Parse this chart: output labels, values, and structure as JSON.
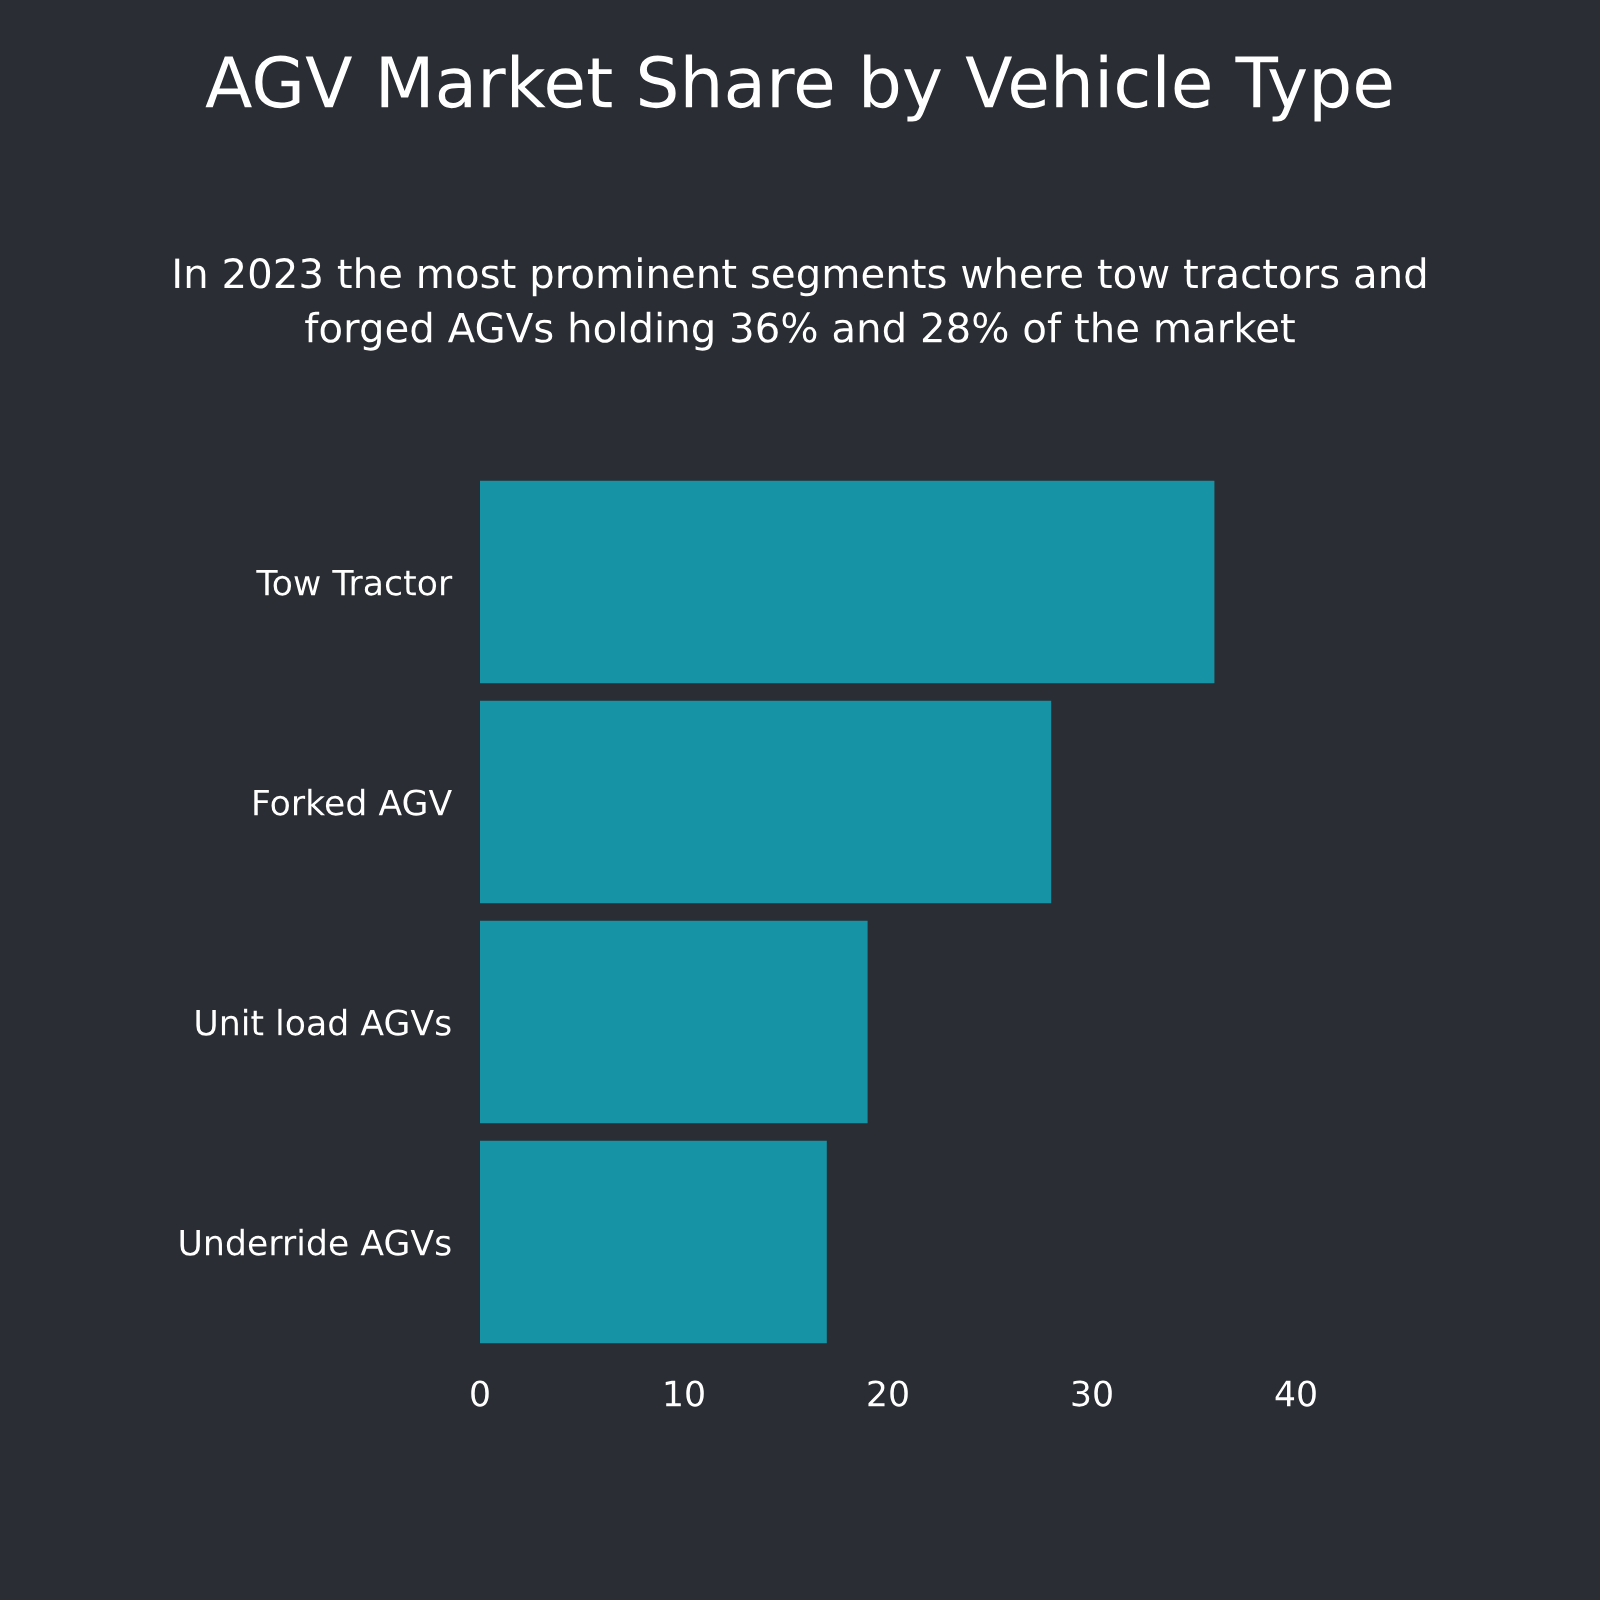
{
  "chart_data": {
    "type": "bar",
    "orientation": "horizontal",
    "title": "AGV Market Share by Vehicle Type",
    "subtitle": "In 2023 the most prominent segments where tow tractors and forged AGVs holding 36% and 28% of the market",
    "categories": [
      "Tow Tractor",
      "Forked AGV",
      "Unit load AGVs",
      "Underride AGVs"
    ],
    "values": [
      36,
      28,
      19,
      17
    ],
    "color": "#1793a6",
    "xlim": [
      0,
      40
    ],
    "xticks": [
      0,
      10,
      20,
      30,
      40
    ],
    "grid": false,
    "legend": false
  }
}
